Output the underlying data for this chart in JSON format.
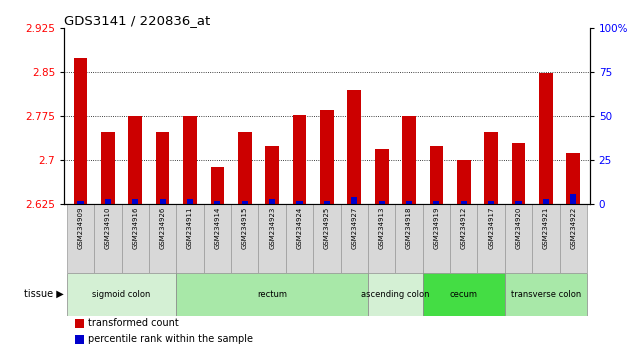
{
  "title": "GDS3141 / 220836_at",
  "samples": [
    "GSM234909",
    "GSM234910",
    "GSM234916",
    "GSM234926",
    "GSM234911",
    "GSM234914",
    "GSM234915",
    "GSM234923",
    "GSM234924",
    "GSM234925",
    "GSM234927",
    "GSM234913",
    "GSM234918",
    "GSM234919",
    "GSM234912",
    "GSM234917",
    "GSM234920",
    "GSM234921",
    "GSM234922"
  ],
  "transformed_count": [
    2.875,
    2.748,
    2.775,
    2.748,
    2.775,
    2.688,
    2.748,
    2.725,
    2.778,
    2.785,
    2.82,
    2.72,
    2.775,
    2.725,
    2.7,
    2.748,
    2.73,
    2.848,
    2.712
  ],
  "percentile_rank": [
    2,
    3,
    3,
    3,
    3,
    2,
    2,
    3,
    2,
    2,
    4,
    2,
    2,
    2,
    2,
    2,
    2,
    3,
    6
  ],
  "tissue_groups": [
    {
      "label": "sigmoid colon",
      "start": 0,
      "end": 4,
      "color": "#d4f0d4"
    },
    {
      "label": "rectum",
      "start": 4,
      "end": 11,
      "color": "#a8e8a8"
    },
    {
      "label": "ascending colon",
      "start": 11,
      "end": 13,
      "color": "#d4f0d4"
    },
    {
      "label": "cecum",
      "start": 13,
      "end": 16,
      "color": "#44dd44"
    },
    {
      "label": "transverse colon",
      "start": 16,
      "end": 19,
      "color": "#a8e8a8"
    }
  ],
  "ylim_left": [
    2.625,
    2.925
  ],
  "ylim_right": [
    0,
    100
  ],
  "yticks_left": [
    2.625,
    2.7,
    2.775,
    2.85,
    2.925
  ],
  "yticks_right": [
    0,
    25,
    50,
    75,
    100
  ],
  "bar_color_red": "#cc0000",
  "bar_color_blue": "#0000cc",
  "bar_width": 0.5,
  "bg_color": "#ffffff",
  "grid_color": "#000000"
}
